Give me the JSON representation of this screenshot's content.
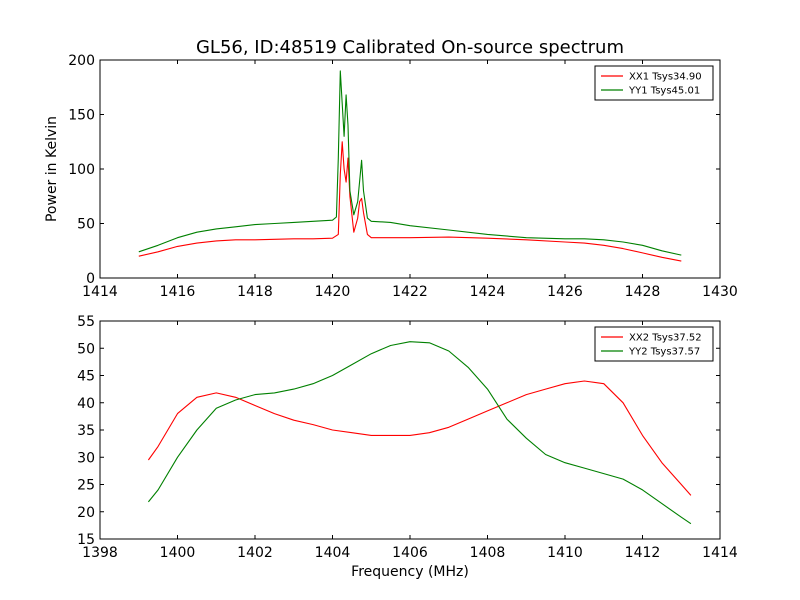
{
  "chart_data": [
    {
      "type": "line",
      "title": "GL56, ID:48519 Calibrated On-source spectrum",
      "xlabel": "",
      "ylabel": "Power in Kelvin",
      "xlim": [
        1414,
        1430
      ],
      "ylim": [
        0,
        200
      ],
      "xticks": [
        "1414",
        "1416",
        "1418",
        "1420",
        "1422",
        "1424",
        "1426",
        "1428",
        "1430"
      ],
      "yticks": [
        "0",
        "50",
        "100",
        "150",
        "200"
      ],
      "grid": false,
      "legend_position": "top-right",
      "series": [
        {
          "name": "XX1 Tsys34.90",
          "color": "#ff0000",
          "x": [
            1415.0,
            1415.5,
            1416.0,
            1416.5,
            1417.0,
            1417.5,
            1418.0,
            1418.5,
            1419.0,
            1419.5,
            1420.0,
            1420.15,
            1420.2,
            1420.25,
            1420.3,
            1420.35,
            1420.4,
            1420.45,
            1420.55,
            1420.65,
            1420.7,
            1420.75,
            1420.8,
            1420.9,
            1421.0,
            1421.5,
            1422.0,
            1423.0,
            1424.0,
            1425.0,
            1426.0,
            1426.5,
            1427.0,
            1427.5,
            1428.0,
            1428.5,
            1429.0
          ],
          "y": [
            20,
            24,
            29,
            32,
            34,
            35,
            35,
            35.5,
            36,
            36,
            36.5,
            40,
            95,
            125,
            100,
            88,
            110,
            75,
            42,
            55,
            70,
            73,
            60,
            40,
            37,
            37,
            37,
            37.5,
            36.5,
            35,
            33,
            32,
            30,
            27,
            23,
            19,
            15.5
          ]
        },
        {
          "name": "YY1 Tsys45.01",
          "color": "#008000",
          "x": [
            1415.0,
            1415.5,
            1416.0,
            1416.5,
            1417.0,
            1417.5,
            1418.0,
            1418.5,
            1419.0,
            1419.5,
            1420.0,
            1420.1,
            1420.15,
            1420.2,
            1420.25,
            1420.3,
            1420.35,
            1420.4,
            1420.45,
            1420.55,
            1420.65,
            1420.75,
            1420.8,
            1420.9,
            1421.0,
            1421.5,
            1422.0,
            1423.0,
            1424.0,
            1425.0,
            1426.0,
            1426.5,
            1427.0,
            1427.5,
            1428.0,
            1428.5,
            1429.0
          ],
          "y": [
            24,
            30,
            37,
            42,
            45,
            47,
            49,
            50,
            51,
            52,
            53,
            56,
            110,
            190,
            160,
            130,
            168,
            140,
            80,
            58,
            70,
            108,
            80,
            55,
            52,
            51,
            48,
            44,
            40,
            37,
            36,
            36,
            35,
            33,
            30,
            25,
            21
          ]
        }
      ]
    },
    {
      "type": "line",
      "title": "",
      "xlabel": "Frequency (MHz)",
      "ylabel": "",
      "xlim": [
        1398,
        1414
      ],
      "ylim": [
        15,
        55
      ],
      "xticks": [
        "1398",
        "1400",
        "1402",
        "1404",
        "1406",
        "1408",
        "1410",
        "1412",
        "1414"
      ],
      "yticks": [
        "15",
        "20",
        "25",
        "30",
        "35",
        "40",
        "45",
        "50",
        "55"
      ],
      "grid": false,
      "legend_position": "top-right",
      "series": [
        {
          "name": "XX2 Tsys37.52",
          "color": "#ff0000",
          "x": [
            1399.25,
            1399.5,
            1400.0,
            1400.5,
            1401.0,
            1401.5,
            1402.0,
            1402.5,
            1403.0,
            1403.5,
            1404.0,
            1404.5,
            1405.0,
            1405.5,
            1406.0,
            1406.5,
            1407.0,
            1407.5,
            1408.0,
            1408.5,
            1409.0,
            1409.5,
            1410.0,
            1410.5,
            1411.0,
            1411.5,
            1412.0,
            1412.5,
            1413.0,
            1413.25
          ],
          "y": [
            29.5,
            32,
            38,
            41,
            41.8,
            41,
            39.5,
            38,
            36.8,
            36,
            35,
            34.5,
            34,
            34,
            34,
            34.5,
            35.5,
            37,
            38.5,
            40,
            41.5,
            42.5,
            43.5,
            44,
            43.5,
            40,
            34,
            29,
            25,
            23
          ]
        },
        {
          "name": "YY2 Tsys37.57",
          "color": "#008000",
          "x": [
            1399.25,
            1399.5,
            1400.0,
            1400.5,
            1401.0,
            1401.5,
            1402.0,
            1402.5,
            1403.0,
            1403.5,
            1404.0,
            1404.5,
            1405.0,
            1405.5,
            1406.0,
            1406.5,
            1407.0,
            1407.5,
            1408.0,
            1408.5,
            1409.0,
            1409.5,
            1410.0,
            1410.5,
            1411.0,
            1411.5,
            1412.0,
            1412.5,
            1413.0,
            1413.25
          ],
          "y": [
            21.8,
            24,
            30,
            35,
            39,
            40.5,
            41.5,
            41.8,
            42.5,
            43.5,
            45,
            47,
            49,
            50.5,
            51.2,
            51,
            49.5,
            46.5,
            42.5,
            37,
            33.5,
            30.5,
            29,
            28,
            27,
            26,
            24,
            21.5,
            19,
            17.8
          ]
        }
      ]
    }
  ]
}
